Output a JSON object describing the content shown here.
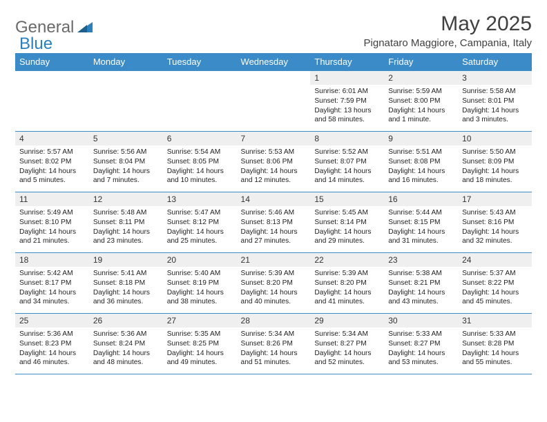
{
  "logo": {
    "text1": "General",
    "text2": "Blue"
  },
  "title": "May 2025",
  "location": "Pignataro Maggiore, Campania, Italy",
  "colors": {
    "header_bg": "#3b8bc8",
    "header_fg": "#ffffff",
    "daynum_bg": "#efefef",
    "border": "#3b8bc8",
    "text": "#222222",
    "logo_gray": "#6a6a6a",
    "logo_blue": "#2a7fbc"
  },
  "weekdays": [
    "Sunday",
    "Monday",
    "Tuesday",
    "Wednesday",
    "Thursday",
    "Friday",
    "Saturday"
  ],
  "weeks": [
    [
      null,
      null,
      null,
      null,
      {
        "n": "1",
        "sr": "6:01 AM",
        "ss": "7:59 PM",
        "dl": "13 hours and 58 minutes."
      },
      {
        "n": "2",
        "sr": "5:59 AM",
        "ss": "8:00 PM",
        "dl": "14 hours and 1 minute."
      },
      {
        "n": "3",
        "sr": "5:58 AM",
        "ss": "8:01 PM",
        "dl": "14 hours and 3 minutes."
      }
    ],
    [
      {
        "n": "4",
        "sr": "5:57 AM",
        "ss": "8:02 PM",
        "dl": "14 hours and 5 minutes."
      },
      {
        "n": "5",
        "sr": "5:56 AM",
        "ss": "8:04 PM",
        "dl": "14 hours and 7 minutes."
      },
      {
        "n": "6",
        "sr": "5:54 AM",
        "ss": "8:05 PM",
        "dl": "14 hours and 10 minutes."
      },
      {
        "n": "7",
        "sr": "5:53 AM",
        "ss": "8:06 PM",
        "dl": "14 hours and 12 minutes."
      },
      {
        "n": "8",
        "sr": "5:52 AM",
        "ss": "8:07 PM",
        "dl": "14 hours and 14 minutes."
      },
      {
        "n": "9",
        "sr": "5:51 AM",
        "ss": "8:08 PM",
        "dl": "14 hours and 16 minutes."
      },
      {
        "n": "10",
        "sr": "5:50 AM",
        "ss": "8:09 PM",
        "dl": "14 hours and 18 minutes."
      }
    ],
    [
      {
        "n": "11",
        "sr": "5:49 AM",
        "ss": "8:10 PM",
        "dl": "14 hours and 21 minutes."
      },
      {
        "n": "12",
        "sr": "5:48 AM",
        "ss": "8:11 PM",
        "dl": "14 hours and 23 minutes."
      },
      {
        "n": "13",
        "sr": "5:47 AM",
        "ss": "8:12 PM",
        "dl": "14 hours and 25 minutes."
      },
      {
        "n": "14",
        "sr": "5:46 AM",
        "ss": "8:13 PM",
        "dl": "14 hours and 27 minutes."
      },
      {
        "n": "15",
        "sr": "5:45 AM",
        "ss": "8:14 PM",
        "dl": "14 hours and 29 minutes."
      },
      {
        "n": "16",
        "sr": "5:44 AM",
        "ss": "8:15 PM",
        "dl": "14 hours and 31 minutes."
      },
      {
        "n": "17",
        "sr": "5:43 AM",
        "ss": "8:16 PM",
        "dl": "14 hours and 32 minutes."
      }
    ],
    [
      {
        "n": "18",
        "sr": "5:42 AM",
        "ss": "8:17 PM",
        "dl": "14 hours and 34 minutes."
      },
      {
        "n": "19",
        "sr": "5:41 AM",
        "ss": "8:18 PM",
        "dl": "14 hours and 36 minutes."
      },
      {
        "n": "20",
        "sr": "5:40 AM",
        "ss": "8:19 PM",
        "dl": "14 hours and 38 minutes."
      },
      {
        "n": "21",
        "sr": "5:39 AM",
        "ss": "8:20 PM",
        "dl": "14 hours and 40 minutes."
      },
      {
        "n": "22",
        "sr": "5:39 AM",
        "ss": "8:20 PM",
        "dl": "14 hours and 41 minutes."
      },
      {
        "n": "23",
        "sr": "5:38 AM",
        "ss": "8:21 PM",
        "dl": "14 hours and 43 minutes."
      },
      {
        "n": "24",
        "sr": "5:37 AM",
        "ss": "8:22 PM",
        "dl": "14 hours and 45 minutes."
      }
    ],
    [
      {
        "n": "25",
        "sr": "5:36 AM",
        "ss": "8:23 PM",
        "dl": "14 hours and 46 minutes."
      },
      {
        "n": "26",
        "sr": "5:36 AM",
        "ss": "8:24 PM",
        "dl": "14 hours and 48 minutes."
      },
      {
        "n": "27",
        "sr": "5:35 AM",
        "ss": "8:25 PM",
        "dl": "14 hours and 49 minutes."
      },
      {
        "n": "28",
        "sr": "5:34 AM",
        "ss": "8:26 PM",
        "dl": "14 hours and 51 minutes."
      },
      {
        "n": "29",
        "sr": "5:34 AM",
        "ss": "8:27 PM",
        "dl": "14 hours and 52 minutes."
      },
      {
        "n": "30",
        "sr": "5:33 AM",
        "ss": "8:27 PM",
        "dl": "14 hours and 53 minutes."
      },
      {
        "n": "31",
        "sr": "5:33 AM",
        "ss": "8:28 PM",
        "dl": "14 hours and 55 minutes."
      }
    ]
  ],
  "labels": {
    "sunrise": "Sunrise: ",
    "sunset": "Sunset: ",
    "daylight": "Daylight: "
  }
}
